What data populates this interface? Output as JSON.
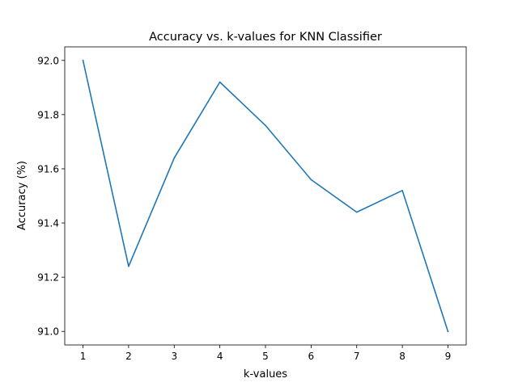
{
  "chart_data": {
    "type": "line",
    "title": "Accuracy vs. k-values for KNN Classifier",
    "xlabel": "k-values",
    "ylabel": "Accuracy (%)",
    "x": [
      1,
      2,
      3,
      4,
      5,
      6,
      7,
      8,
      9
    ],
    "series": [
      {
        "values": [
          92.0,
          91.24,
          91.64,
          91.92,
          91.76,
          91.56,
          91.44,
          91.52,
          91.0
        ],
        "color": "#1f77b4"
      }
    ],
    "xlim": [
      0.6,
      9.4
    ],
    "ylim": [
      90.95,
      92.05
    ],
    "xticks": [
      "1",
      "2",
      "3",
      "4",
      "5",
      "6",
      "7",
      "8",
      "9"
    ],
    "yticks": [
      "91.0",
      "91.2",
      "91.4",
      "91.6",
      "91.8",
      "92.0"
    ],
    "grid": false,
    "legend": "none"
  }
}
